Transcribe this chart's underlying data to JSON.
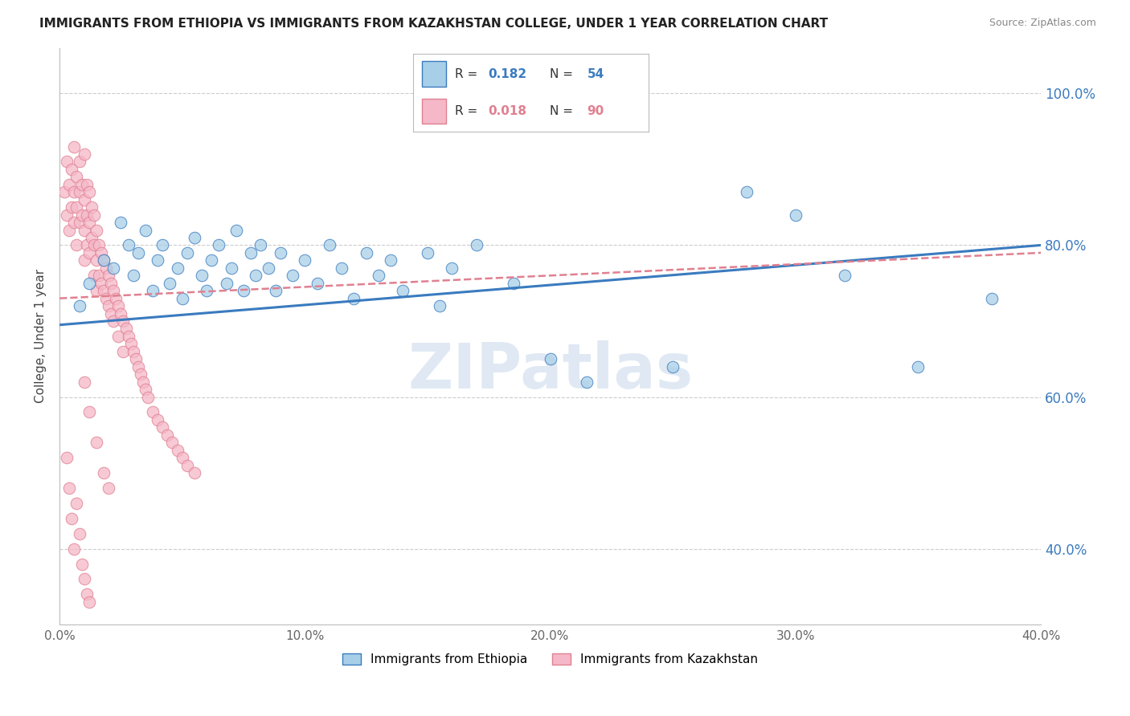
{
  "title": "IMMIGRANTS FROM ETHIOPIA VS IMMIGRANTS FROM KAZAKHSTAN COLLEGE, UNDER 1 YEAR CORRELATION CHART",
  "source": "Source: ZipAtlas.com",
  "ylabel": "College, Under 1 year",
  "xlim": [
    0.0,
    0.4
  ],
  "ylim": [
    0.3,
    1.06
  ],
  "ytick_labels": [
    "40.0%",
    "60.0%",
    "80.0%",
    "100.0%"
  ],
  "ytick_values": [
    0.4,
    0.6,
    0.8,
    1.0
  ],
  "xtick_labels": [
    "0.0%",
    "10.0%",
    "20.0%",
    "30.0%",
    "40.0%"
  ],
  "xtick_values": [
    0.0,
    0.1,
    0.2,
    0.3,
    0.4
  ],
  "ethiopia_color": "#a8cfe8",
  "kazakhstan_color": "#f5b8c8",
  "ethiopia_line_color": "#3a7bbf",
  "kazakhstan_line_color": "#e08090",
  "watermark": "ZIPatlas",
  "ethiopia_x": [
    0.008,
    0.012,
    0.018,
    0.022,
    0.025,
    0.028,
    0.03,
    0.032,
    0.035,
    0.038,
    0.04,
    0.042,
    0.045,
    0.048,
    0.05,
    0.052,
    0.055,
    0.058,
    0.06,
    0.062,
    0.065,
    0.068,
    0.07,
    0.072,
    0.075,
    0.078,
    0.08,
    0.082,
    0.085,
    0.088,
    0.09,
    0.095,
    0.1,
    0.105,
    0.11,
    0.115,
    0.12,
    0.125,
    0.13,
    0.135,
    0.14,
    0.15,
    0.155,
    0.16,
    0.17,
    0.185,
    0.2,
    0.215,
    0.25,
    0.28,
    0.3,
    0.32,
    0.35,
    0.38
  ],
  "ethiopia_y": [
    0.72,
    0.75,
    0.78,
    0.77,
    0.83,
    0.8,
    0.76,
    0.79,
    0.82,
    0.74,
    0.78,
    0.8,
    0.75,
    0.77,
    0.73,
    0.79,
    0.81,
    0.76,
    0.74,
    0.78,
    0.8,
    0.75,
    0.77,
    0.82,
    0.74,
    0.79,
    0.76,
    0.8,
    0.77,
    0.74,
    0.79,
    0.76,
    0.78,
    0.75,
    0.8,
    0.77,
    0.73,
    0.79,
    0.76,
    0.78,
    0.74,
    0.79,
    0.72,
    0.77,
    0.8,
    0.75,
    0.65,
    0.62,
    0.64,
    0.87,
    0.84,
    0.76,
    0.64,
    0.73
  ],
  "kazakhstan_x": [
    0.002,
    0.003,
    0.003,
    0.004,
    0.004,
    0.005,
    0.005,
    0.006,
    0.006,
    0.006,
    0.007,
    0.007,
    0.007,
    0.008,
    0.008,
    0.008,
    0.009,
    0.009,
    0.01,
    0.01,
    0.01,
    0.01,
    0.011,
    0.011,
    0.011,
    0.012,
    0.012,
    0.012,
    0.013,
    0.013,
    0.014,
    0.014,
    0.014,
    0.015,
    0.015,
    0.015,
    0.016,
    0.016,
    0.017,
    0.017,
    0.018,
    0.018,
    0.019,
    0.019,
    0.02,
    0.02,
    0.021,
    0.021,
    0.022,
    0.022,
    0.023,
    0.024,
    0.024,
    0.025,
    0.026,
    0.026,
    0.027,
    0.028,
    0.029,
    0.03,
    0.031,
    0.032,
    0.033,
    0.034,
    0.035,
    0.036,
    0.038,
    0.04,
    0.042,
    0.044,
    0.046,
    0.048,
    0.05,
    0.052,
    0.055,
    0.01,
    0.012,
    0.015,
    0.018,
    0.02,
    0.003,
    0.004,
    0.005,
    0.006,
    0.007,
    0.008,
    0.009,
    0.01,
    0.011,
    0.012
  ],
  "kazakhstan_y": [
    0.87,
    0.91,
    0.84,
    0.88,
    0.82,
    0.9,
    0.85,
    0.93,
    0.87,
    0.83,
    0.89,
    0.85,
    0.8,
    0.91,
    0.87,
    0.83,
    0.88,
    0.84,
    0.92,
    0.86,
    0.82,
    0.78,
    0.88,
    0.84,
    0.8,
    0.87,
    0.83,
    0.79,
    0.85,
    0.81,
    0.84,
    0.8,
    0.76,
    0.82,
    0.78,
    0.74,
    0.8,
    0.76,
    0.79,
    0.75,
    0.78,
    0.74,
    0.77,
    0.73,
    0.76,
    0.72,
    0.75,
    0.71,
    0.74,
    0.7,
    0.73,
    0.72,
    0.68,
    0.71,
    0.7,
    0.66,
    0.69,
    0.68,
    0.67,
    0.66,
    0.65,
    0.64,
    0.63,
    0.62,
    0.61,
    0.6,
    0.58,
    0.57,
    0.56,
    0.55,
    0.54,
    0.53,
    0.52,
    0.51,
    0.5,
    0.62,
    0.58,
    0.54,
    0.5,
    0.48,
    0.52,
    0.48,
    0.44,
    0.4,
    0.46,
    0.42,
    0.38,
    0.36,
    0.34,
    0.33
  ]
}
